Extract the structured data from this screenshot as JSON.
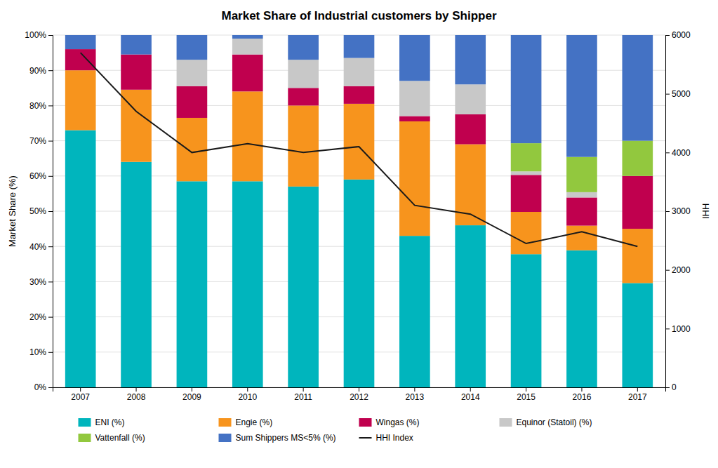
{
  "chart_data": {
    "type": "bar",
    "stacked": true,
    "title": "Market Share of Industrial customers by Shipper",
    "ylabel": "Market Share (%)",
    "y2label": "HHI",
    "categories": [
      "2007",
      "2008",
      "2009",
      "2010",
      "2011",
      "2012",
      "2013",
      "2014",
      "2015",
      "2016",
      "2017"
    ],
    "series": [
      {
        "name": "ENI (%)",
        "color": "#00B5BD",
        "values": [
          73.0,
          64.0,
          58.5,
          58.5,
          57.0,
          59.0,
          43.0,
          46.0,
          37.8,
          38.9,
          29.6
        ]
      },
      {
        "name": "Engie (%)",
        "color": "#F7941D",
        "values": [
          17.0,
          20.5,
          18.0,
          25.5,
          23.0,
          21.5,
          32.5,
          23.0,
          12.0,
          7.0,
          15.4
        ]
      },
      {
        "name": "Wingas (%)",
        "color": "#C0004E",
        "values": [
          6.0,
          10.0,
          9.0,
          10.5,
          5.0,
          5.0,
          1.5,
          8.5,
          10.5,
          8.0,
          15.0
        ]
      },
      {
        "name": "Equinor (Statoil) (%)",
        "color": "#C8C8C8",
        "values": [
          0.0,
          0.0,
          7.5,
          4.5,
          8.0,
          8.0,
          10.0,
          8.5,
          1.0,
          1.5,
          0.0
        ]
      },
      {
        "name": "Vattenfall (%)",
        "color": "#92C83E",
        "values": [
          0.0,
          0.0,
          0.0,
          0.0,
          0.0,
          0.0,
          0.0,
          0.0,
          8.0,
          10.0,
          10.0
        ]
      },
      {
        "name": "Sum Shippers MS<5% (%)",
        "color": "#4472C4",
        "values": [
          4.0,
          5.5,
          7.0,
          1.0,
          7.0,
          6.5,
          13.0,
          14.0,
          30.7,
          34.6,
          30.0
        ]
      },
      {
        "name": "HHI Index",
        "type": "line",
        "axis": "y2",
        "color": "#1A1A1A",
        "values": [
          5700,
          4700,
          4000,
          4150,
          4000,
          4100,
          3100,
          2950,
          2450,
          2650,
          2400
        ]
      }
    ],
    "ylim": [
      0,
      100
    ],
    "yticks": [
      {
        "value": 0,
        "label": "0%"
      },
      {
        "value": 10,
        "label": "10%"
      },
      {
        "value": 20,
        "label": "20%"
      },
      {
        "value": 30,
        "label": "30%"
      },
      {
        "value": 40,
        "label": "40%"
      },
      {
        "value": 50,
        "label": "50%"
      },
      {
        "value": 60,
        "label": "60%"
      },
      {
        "value": 70,
        "label": "70%"
      },
      {
        "value": 80,
        "label": "80%"
      },
      {
        "value": 90,
        "label": "90%"
      },
      {
        "value": 100,
        "label": "100%"
      }
    ],
    "y2lim": [
      0,
      6000
    ],
    "y2ticks": [
      0,
      1000,
      2000,
      3000,
      4000,
      5000,
      6000
    ],
    "grid": true,
    "legend": "bottom"
  }
}
